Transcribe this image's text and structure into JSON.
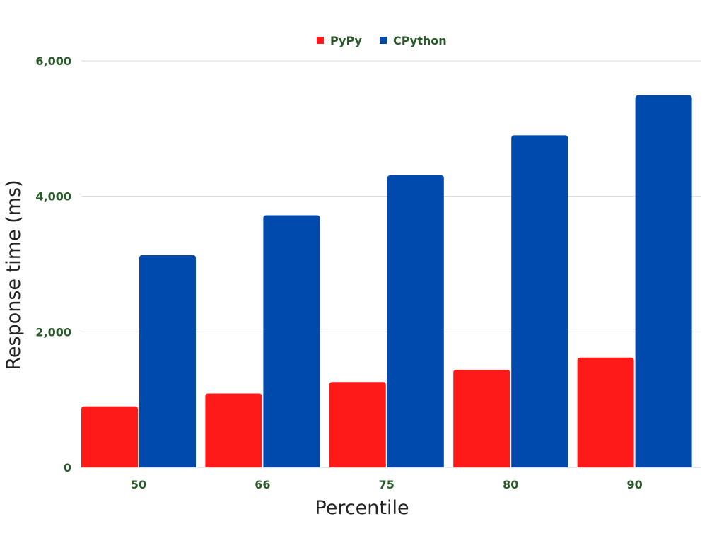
{
  "chart_data": {
    "type": "bar",
    "title": "",
    "xlabel": "Percentile",
    "ylabel": "Response time (ms)",
    "categories": [
      "50",
      "66",
      "75",
      "80",
      "90"
    ],
    "series": [
      {
        "name": "PyPy",
        "color": "#ff1a1a",
        "values": [
          900,
          1090,
          1260,
          1440,
          1620
        ]
      },
      {
        "name": "CPython",
        "color": "#004aad",
        "values": [
          3130,
          3720,
          4310,
          4900,
          5490
        ]
      }
    ],
    "ylim": [
      0,
      6000
    ],
    "yticks": [
      0,
      2000,
      4000,
      6000
    ],
    "ytick_labels": [
      "0",
      "2,000",
      "4,000",
      "6,000"
    ],
    "grid": true,
    "legend_position": "top-center",
    "label_color": "#285a28",
    "axis_title_color": "#222222",
    "grid_color": "#d9d9d9"
  }
}
